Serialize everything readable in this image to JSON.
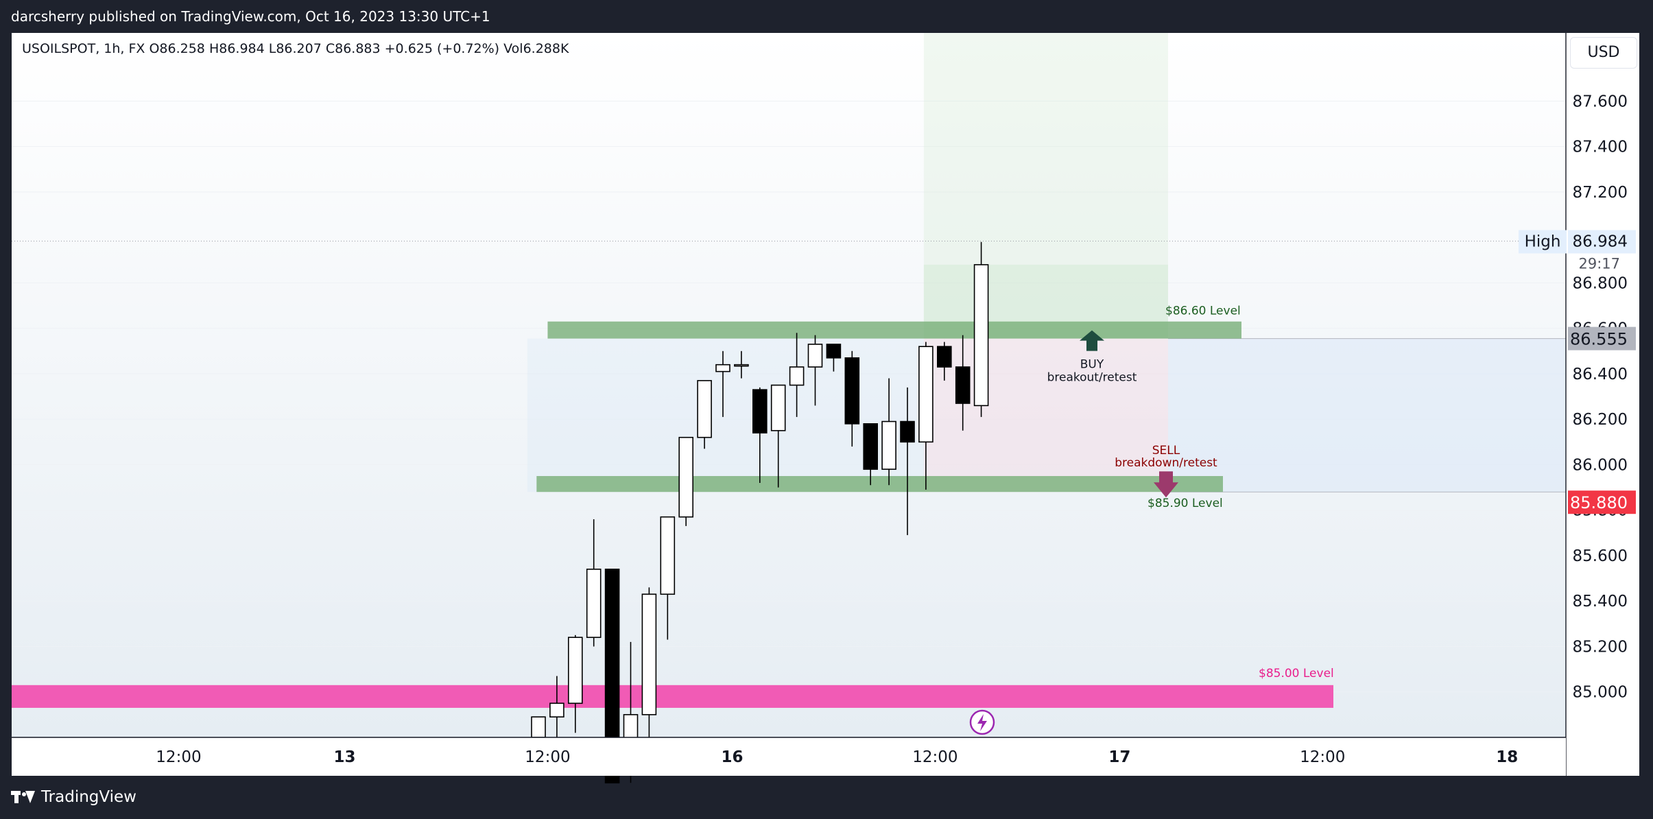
{
  "publisher": "darcsherry published on TradingView.com, Oct 16, 2023 13:30 UTC+1",
  "legend": "USOILSPOT, 1h, FX  O86.258  H86.984  L86.207  C86.883  +0.625 (+0.72%)  Vol6.288K",
  "currency_button": "USD",
  "footer_brand": "TradingView",
  "colors": {
    "up_candle": "#ffffff",
    "down_candle": "#000000",
    "level_green": "#7fb37f",
    "level_pink": "#f15bb5",
    "last_price_bg": "#f23645",
    "current_price_bg": "#b2b5be",
    "buy_arrow": "#1e4d3f",
    "sell_arrow": "#9c3a6c"
  },
  "chart_data": {
    "type": "candlestick",
    "symbol": "USOILSPOT",
    "timeframe": "1h",
    "ylim": [
      84.8,
      87.9
    ],
    "y_ticks": [
      "87.600",
      "87.400",
      "87.200",
      "86.800",
      "86.600",
      "86.400",
      "86.200",
      "86.000",
      "85.800",
      "85.600",
      "85.400",
      "85.200",
      "85.000"
    ],
    "x_ticks": [
      {
        "label": "12:00",
        "index": -19.5
      },
      {
        "label": "13",
        "index": -10.5
      },
      {
        "label": "12:00",
        "index": 0.5
      },
      {
        "label": "16",
        "index": 10.5
      },
      {
        "label": "12:00",
        "index": 21.5
      },
      {
        "label": "17",
        "index": 31.5
      },
      {
        "label": "12:00",
        "index": 42.5
      },
      {
        "label": "18",
        "index": 52.5
      }
    ],
    "candles": [
      {
        "o": 84.8,
        "h": 84.87,
        "l": 84.7,
        "c": 84.89
      },
      {
        "o": 84.89,
        "h": 85.07,
        "l": 84.8,
        "c": 84.95
      },
      {
        "o": 84.95,
        "h": 85.25,
        "l": 84.82,
        "c": 85.24
      },
      {
        "o": 85.24,
        "h": 85.76,
        "l": 85.2,
        "c": 85.54
      },
      {
        "o": 85.54,
        "h": 85.54,
        "l": 84.6,
        "c": 84.6
      },
      {
        "o": 84.7,
        "h": 85.22,
        "l": 84.6,
        "c": 84.9
      },
      {
        "o": 84.9,
        "h": 85.46,
        "l": 84.78,
        "c": 85.43
      },
      {
        "o": 85.43,
        "h": 85.77,
        "l": 85.23,
        "c": 85.77
      },
      {
        "o": 85.77,
        "h": 86.12,
        "l": 85.73,
        "c": 86.12
      },
      {
        "o": 86.12,
        "h": 86.37,
        "l": 86.07,
        "c": 86.37
      },
      {
        "o": 86.41,
        "h": 86.5,
        "l": 86.21,
        "c": 86.44
      },
      {
        "o": 86.44,
        "h": 86.5,
        "l": 86.38,
        "c": 86.44
      },
      {
        "o": 86.33,
        "h": 86.34,
        "l": 85.92,
        "c": 86.14
      },
      {
        "o": 86.15,
        "h": 86.35,
        "l": 85.9,
        "c": 86.35
      },
      {
        "o": 86.35,
        "h": 86.58,
        "l": 86.21,
        "c": 86.43
      },
      {
        "o": 86.43,
        "h": 86.57,
        "l": 86.26,
        "c": 86.53
      },
      {
        "o": 86.53,
        "h": 86.53,
        "l": 86.41,
        "c": 86.47
      },
      {
        "o": 86.47,
        "h": 86.5,
        "l": 86.08,
        "c": 86.18
      },
      {
        "o": 86.18,
        "h": 86.18,
        "l": 85.91,
        "c": 85.98
      },
      {
        "o": 85.98,
        "h": 86.38,
        "l": 85.91,
        "c": 86.19
      },
      {
        "o": 86.19,
        "h": 86.34,
        "l": 85.69,
        "c": 86.1
      },
      {
        "o": 86.1,
        "h": 86.54,
        "l": 85.89,
        "c": 86.52
      },
      {
        "o": 86.52,
        "h": 86.54,
        "l": 86.37,
        "c": 86.43
      },
      {
        "o": 86.43,
        "h": 86.57,
        "l": 86.15,
        "c": 86.27
      },
      {
        "o": 86.26,
        "h": 86.98,
        "l": 86.21,
        "c": 86.88
      }
    ],
    "levels": [
      {
        "label": "$86.60 Level",
        "low": 86.555,
        "high": 86.63
      },
      {
        "label": "$85.90 Level",
        "low": 85.88,
        "high": 85.95
      },
      {
        "label": "$85.00 Level",
        "low": 84.93,
        "high": 85.03
      }
    ],
    "annotations": {
      "buy": [
        "BUY",
        "breakout/retest"
      ],
      "sell": [
        "SELL",
        "breakdown/retest"
      ]
    },
    "price_labels": {
      "high_tag": "High",
      "high_value": "86.984",
      "countdown": "29:17",
      "current_price": "86.555",
      "last_price": "85.880"
    },
    "position": {
      "entry": 86.555,
      "target": 87.9,
      "stop": 85.88
    },
    "grid": true
  }
}
